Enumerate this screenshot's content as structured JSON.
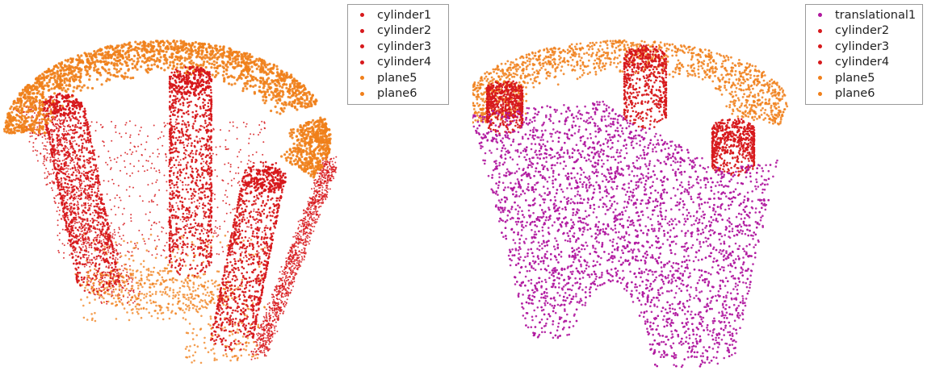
{
  "chart_data": [
    {
      "type": "scatter",
      "title": "",
      "legend_placement": "upper-right",
      "grid": false,
      "axes_visible": false,
      "series": [
        {
          "name": "cylinder1",
          "color": "#d7191c",
          "shape": "pillar",
          "points": 900
        },
        {
          "name": "cylinder2",
          "color": "#d7191c",
          "shape": "pillar",
          "points": 900
        },
        {
          "name": "cylinder3",
          "color": "#d7191c",
          "shape": "pillar",
          "points": 900
        },
        {
          "name": "cylinder4",
          "color": "#d7191c",
          "shape": "outer wall",
          "points": 2600
        },
        {
          "name": "plane5",
          "color": "#f07f1a",
          "shape": "top face",
          "points": 2200
        },
        {
          "name": "plane6",
          "color": "#f07f1a",
          "shape": "bottom face",
          "points": 700
        }
      ]
    },
    {
      "type": "scatter",
      "title": "",
      "legend_placement": "upper-right",
      "grid": false,
      "axes_visible": false,
      "series": [
        {
          "name": "translational1",
          "color": "#b0189f",
          "shape": "outer wall",
          "points": 4200
        },
        {
          "name": "cylinder2",
          "color": "#d7191c",
          "shape": "pillar",
          "points": 500
        },
        {
          "name": "cylinder3",
          "color": "#d7191c",
          "shape": "pillar",
          "points": 450
        },
        {
          "name": "cylinder4",
          "color": "#d7191c",
          "shape": "pillar",
          "points": 450
        },
        {
          "name": "plane5",
          "color": "#f07f1a",
          "shape": "top face",
          "points": 1400
        },
        {
          "name": "plane6",
          "color": "#f07f1a",
          "shape": "bottom face",
          "points": 0
        }
      ]
    }
  ]
}
